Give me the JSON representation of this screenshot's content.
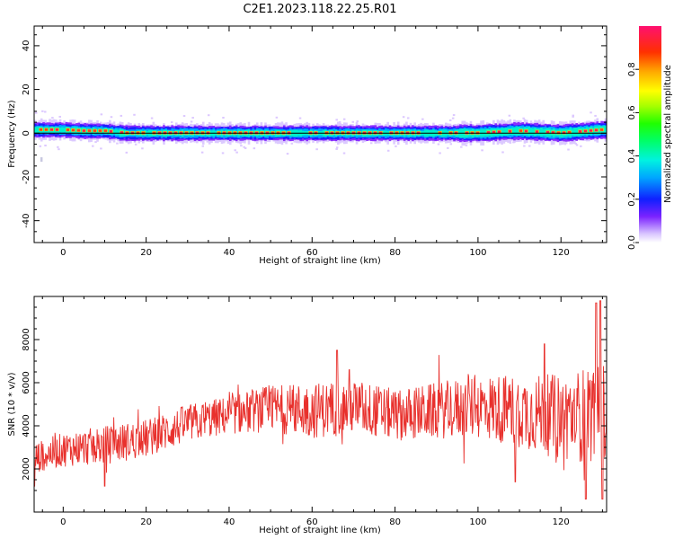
{
  "title": "C2E1.2023.118.22.25.R01",
  "chart_data": [
    {
      "type": "heatmap",
      "xlabel": "Height of straight line (km)",
      "ylabel": "Frequency (Hz)",
      "xlim": [
        -7,
        131
      ],
      "ylim": [
        -50,
        49
      ],
      "x_ticks": [
        0,
        20,
        40,
        60,
        80,
        100,
        120
      ],
      "y_ticks": [
        -40,
        -20,
        0,
        20,
        40
      ],
      "y_tick_labels": [
        "-40",
        "-20",
        "0",
        "20",
        "40"
      ],
      "x_tick_labels": [
        "0",
        "20",
        "40",
        "60",
        "80",
        "100",
        "120"
      ],
      "grid": false,
      "colorbar": {
        "label": "Normalized spectral amplitude",
        "range": [
          0,
          1
        ],
        "ticks": [
          0.0,
          0.2,
          0.4,
          0.6,
          0.8
        ],
        "tick_labels": [
          "0.0",
          "0.2",
          "0.4",
          "0.6",
          "0.8"
        ],
        "colormap": "rainbow"
      },
      "band": {
        "description": "Narrow band of high amplitude centered near 0 Hz across the full height range",
        "peak_frequency_hz": [
          {
            "x": -5,
            "y": 1.5
          },
          {
            "x": 0,
            "y": 1.5
          },
          {
            "x": 5,
            "y": 1
          },
          {
            "x": 10,
            "y": 1
          },
          {
            "x": 15,
            "y": 0
          },
          {
            "x": 20,
            "y": 0
          },
          {
            "x": 30,
            "y": 0
          },
          {
            "x": 40,
            "y": 0
          },
          {
            "x": 50,
            "y": 0
          },
          {
            "x": 60,
            "y": 0
          },
          {
            "x": 70,
            "y": 0
          },
          {
            "x": 80,
            "y": 0
          },
          {
            "x": 90,
            "y": 0
          },
          {
            "x": 100,
            "y": 0
          },
          {
            "x": 110,
            "y": 1
          },
          {
            "x": 120,
            "y": 0
          },
          {
            "x": 130,
            "y": 1.5
          }
        ]
      }
    },
    {
      "type": "line",
      "xlabel": "Height of straight line (km)",
      "ylabel": "SNR (10 * v/v)",
      "xlim": [
        -7,
        131
      ],
      "ylim": [
        0,
        10000
      ],
      "x_ticks": [
        0,
        20,
        40,
        60,
        80,
        100,
        120
      ],
      "x_tick_labels": [
        "0",
        "20",
        "40",
        "60",
        "80",
        "100",
        "120"
      ],
      "y_ticks": [
        2000,
        4000,
        6000,
        8000
      ],
      "y_tick_labels": [
        "2000",
        "4000",
        "6000",
        "8000"
      ],
      "grid": false,
      "series": [
        {
          "color": "#e8302c",
          "trend_x": [
            -7,
            0,
            10,
            20,
            30,
            40,
            50,
            60,
            70,
            80,
            90,
            100,
            110,
            120,
            131
          ],
          "trend_y": [
            2500,
            2900,
            3100,
            3400,
            4100,
            4500,
            4800,
            4700,
            4900,
            4500,
            4700,
            4900,
            4700,
            4400,
            4600
          ],
          "spread": [
            700,
            800,
            900,
            900,
            900,
            900,
            1100,
            1300,
            1300,
            1200,
            1300,
            1500,
            1700,
            2000,
            2400
          ],
          "peaks": [
            {
              "x": 66,
              "y": 7500
            },
            {
              "x": 69,
              "y": 6600
            },
            {
              "x": 116,
              "y": 7800
            },
            {
              "x": 128.5,
              "y": 9700
            },
            {
              "x": 129.5,
              "y": 9800
            }
          ],
          "troughs": [
            {
              "x": -7,
              "y": 1200
            },
            {
              "x": 10,
              "y": 1200
            },
            {
              "x": 109,
              "y": 1400
            },
            {
              "x": 126,
              "y": 600
            },
            {
              "x": 130,
              "y": 600
            }
          ]
        }
      ]
    }
  ]
}
